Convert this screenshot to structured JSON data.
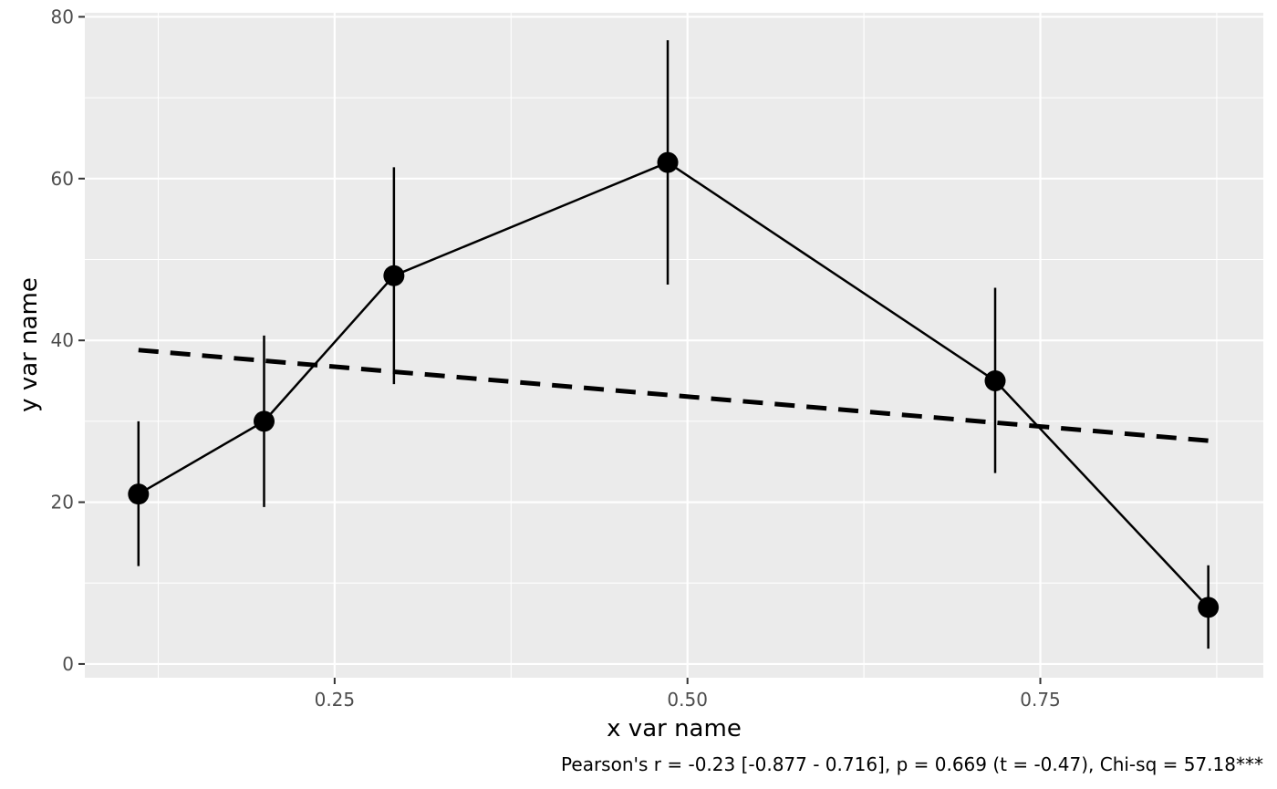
{
  "chart_data": {
    "type": "line",
    "title": "",
    "xlabel": "x var name",
    "ylabel": "y var name",
    "caption": "Pearson's r = -0.23 [-0.877 - 0.716], p = 0.669 (t = -0.47), Chi-sq = 57.18***",
    "xlim": [
      0.073,
      0.908
    ],
    "ylim": [
      -1.7,
      80.5
    ],
    "x_ticks": [
      {
        "value": 0.25,
        "label": "0.25"
      },
      {
        "value": 0.5,
        "label": "0.50"
      },
      {
        "value": 0.75,
        "label": "0.75"
      }
    ],
    "x_minor_ticks": [
      0.125,
      0.375,
      0.625,
      0.875
    ],
    "y_ticks": [
      {
        "value": 0,
        "label": "0"
      },
      {
        "value": 20,
        "label": "20"
      },
      {
        "value": 40,
        "label": "40"
      },
      {
        "value": 60,
        "label": "60"
      },
      {
        "value": 80,
        "label": "80"
      }
    ],
    "y_minor_ticks": [
      10,
      30,
      50,
      70
    ],
    "grid": true,
    "series": [
      {
        "x": [
          0.111,
          0.2,
          0.292,
          0.486,
          0.718,
          0.869
        ],
        "y": [
          21,
          30,
          48,
          62,
          35,
          7
        ],
        "ymin": [
          12.1,
          19.4,
          34.6,
          46.9,
          23.6,
          1.9
        ],
        "ymax": [
          30.0,
          40.6,
          61.4,
          77.1,
          46.5,
          12.2
        ]
      }
    ],
    "trend_line": {
      "style": "dashed",
      "x": [
        0.111,
        0.869
      ],
      "y": [
        38.8,
        27.6
      ]
    },
    "colors": {
      "panel_background": "#ebebeb",
      "grid": "#ffffff",
      "series": "#000000",
      "tick_text": "#4d4d4d",
      "tick_mark": "#333333"
    }
  }
}
